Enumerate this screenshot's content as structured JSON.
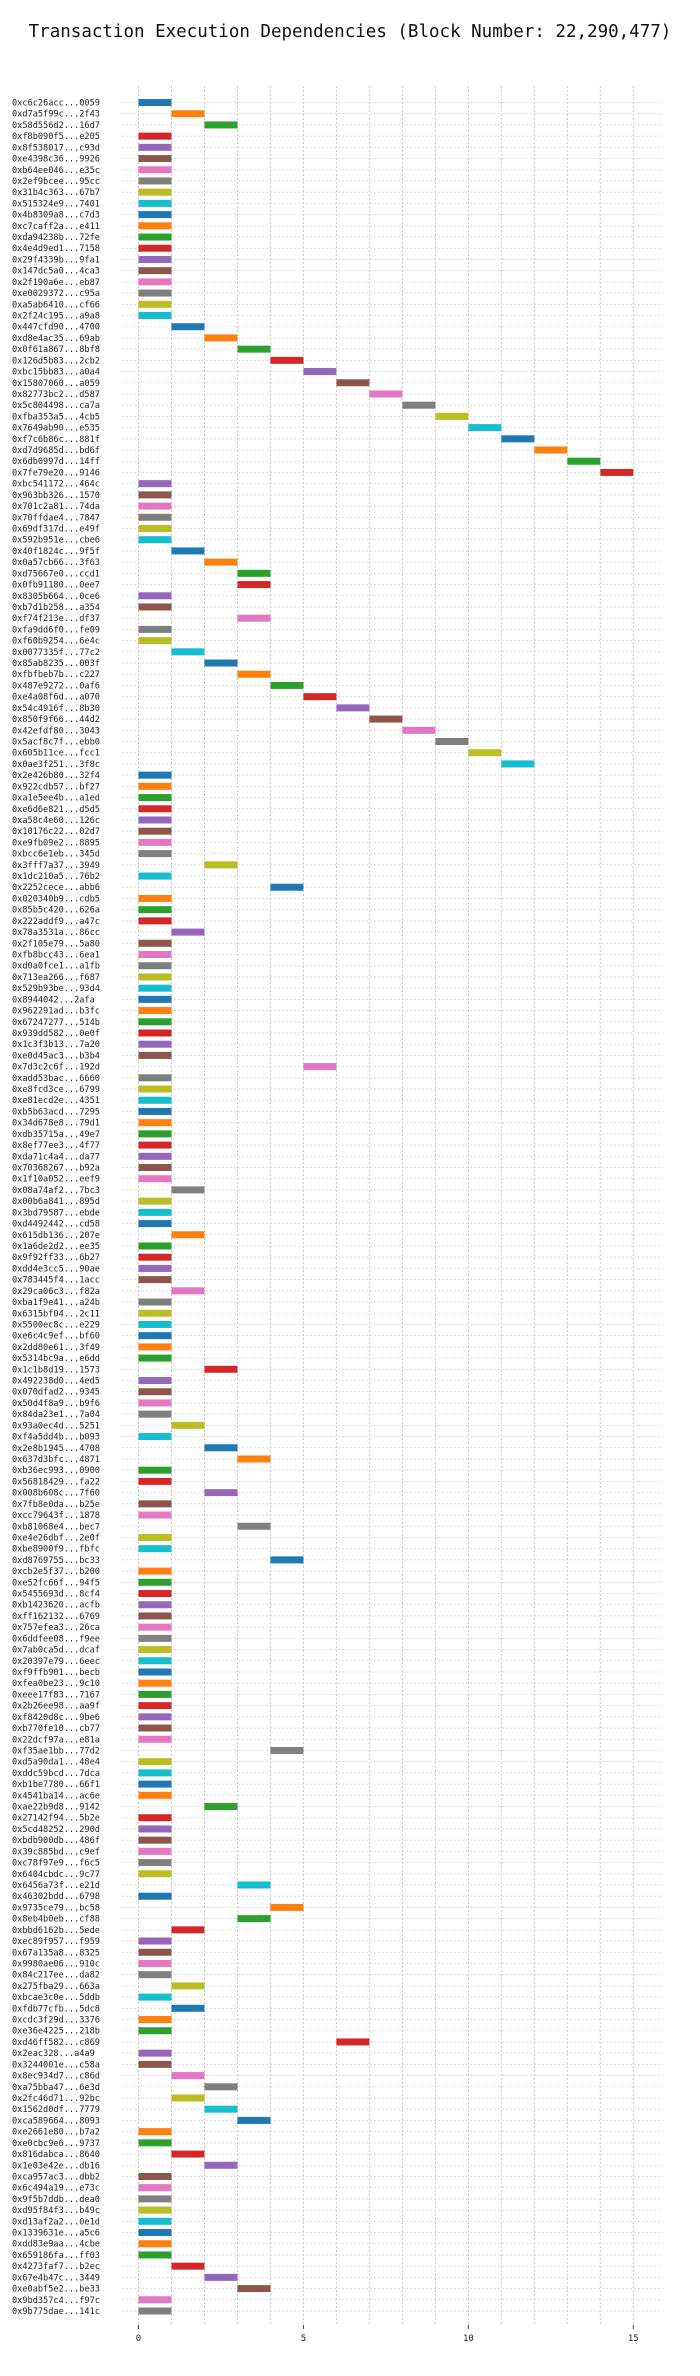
{
  "chart_data": {
    "type": "bar",
    "orientation": "horizontal-gantt",
    "title": "Transaction Execution Dependencies (Block Number: 22,290,477)",
    "xlabel": "",
    "ylabel": "",
    "xlim": [
      -0.5,
      15.9
    ],
    "xticks": [
      0,
      5,
      10,
      15
    ],
    "grid": true,
    "legend": "none",
    "palette": [
      "#1f77b4",
      "#ff7f0e",
      "#2ca02c",
      "#d62728",
      "#9467bd",
      "#8c564b",
      "#e377c2",
      "#7f7f7f",
      "#bcbd22",
      "#17becf"
    ],
    "bar_width": 1,
    "transactions": [
      {
        "label": "0xc6c26acc...0059",
        "start": 0
      },
      {
        "label": "0xd7a5f99c...2f43",
        "start": 1
      },
      {
        "label": "0x58d556d2...16d7",
        "start": 2
      },
      {
        "label": "0xf8b090f5...e205",
        "start": 0
      },
      {
        "label": "0x8f538017...c93d",
        "start": 0
      },
      {
        "label": "0xe4398c36...9926",
        "start": 0
      },
      {
        "label": "0xb64ee046...e35c",
        "start": 0
      },
      {
        "label": "0x2ef9bcee...95cc",
        "start": 0
      },
      {
        "label": "0x31b4c363...67b7",
        "start": 0
      },
      {
        "label": "0x515324e9...7401",
        "start": 0
      },
      {
        "label": "0x4b8309a8...c7d3",
        "start": 0
      },
      {
        "label": "0xc7caff2a...e411",
        "start": 0
      },
      {
        "label": "0xda94238b...72fe",
        "start": 0
      },
      {
        "label": "0x4e4d9ed1...7158",
        "start": 0
      },
      {
        "label": "0x29f4339b...9fa1",
        "start": 0
      },
      {
        "label": "0x147dc5a0...4ca3",
        "start": 0
      },
      {
        "label": "0x2f190a6e...eb87",
        "start": 0
      },
      {
        "label": "0xe0029372...c95a",
        "start": 0
      },
      {
        "label": "0xa5ab6410...cf66",
        "start": 0
      },
      {
        "label": "0x2f24c195...a9a8",
        "start": 0
      },
      {
        "label": "0x447cfd90...4700",
        "start": 1
      },
      {
        "label": "0xd8e4ac35...69ab",
        "start": 2
      },
      {
        "label": "0x0f61a867...8bf8",
        "start": 3
      },
      {
        "label": "0x126d5b83...2cb2",
        "start": 4
      },
      {
        "label": "0xbc15bb83...a0a4",
        "start": 5
      },
      {
        "label": "0x15807060...a059",
        "start": 6
      },
      {
        "label": "0x82773bc2...d587",
        "start": 7
      },
      {
        "label": "0x5c804498...ca7a",
        "start": 8
      },
      {
        "label": "0xfba353a5...4cb5",
        "start": 9
      },
      {
        "label": "0x7649ab90...e535",
        "start": 10
      },
      {
        "label": "0xf7c6b86c...881f",
        "start": 11
      },
      {
        "label": "0xd7d9685d...bd6f",
        "start": 12
      },
      {
        "label": "0x6db0997d...14ff",
        "start": 13
      },
      {
        "label": "0x7fe79e20...9146",
        "start": 14
      },
      {
        "label": "0xbc541172...464c",
        "start": 0
      },
      {
        "label": "0x963bb326...1570",
        "start": 0
      },
      {
        "label": "0x701c2a81...74da",
        "start": 0
      },
      {
        "label": "0x70ffdae4...7847",
        "start": 0
      },
      {
        "label": "0x69df317d...e49f",
        "start": 0
      },
      {
        "label": "0x592b951e...cbe6",
        "start": 0
      },
      {
        "label": "0x40f1824c...9f5f",
        "start": 1
      },
      {
        "label": "0x0a57cb66...3f63",
        "start": 2
      },
      {
        "label": "0xd75667e0...ccd1",
        "start": 3
      },
      {
        "label": "0x0fb91180...0ee7",
        "start": 3
      },
      {
        "label": "0x8305b664...0ce6",
        "start": 0
      },
      {
        "label": "0xb7d1b258...a354",
        "start": 0
      },
      {
        "label": "0xf74f213e...df37",
        "start": 3
      },
      {
        "label": "0xfa9dd6f0...fe09",
        "start": 0
      },
      {
        "label": "0xf60b9254...6e4c",
        "start": 0
      },
      {
        "label": "0x0077335f...77c2",
        "start": 1
      },
      {
        "label": "0x85ab8235...003f",
        "start": 2
      },
      {
        "label": "0xfbfbeb7b...c227",
        "start": 3
      },
      {
        "label": "0x487e9272...0af6",
        "start": 4
      },
      {
        "label": "0xe4a08f6d...a070",
        "start": 5
      },
      {
        "label": "0x54c4916f...8b30",
        "start": 6
      },
      {
        "label": "0x850f9f66...44d2",
        "start": 7
      },
      {
        "label": "0x42efdf80...3043",
        "start": 8
      },
      {
        "label": "0x5acf8c7f...ebb0",
        "start": 9
      },
      {
        "label": "0x605b11ce...fcc1",
        "start": 10
      },
      {
        "label": "0x0ae3f251...3f8c",
        "start": 11
      },
      {
        "label": "0x2e426b80...32f4",
        "start": 0
      },
      {
        "label": "0x922cdb57...bf27",
        "start": 0
      },
      {
        "label": "0xa1e5ee4b...a1ed",
        "start": 0
      },
      {
        "label": "0xe6d6e821...d5d5",
        "start": 0
      },
      {
        "label": "0xa58c4e60...126c",
        "start": 0
      },
      {
        "label": "0x10176c22...02d7",
        "start": 0
      },
      {
        "label": "0xe9fb09e2...8895",
        "start": 0
      },
      {
        "label": "0xbcc6e1eb...345d",
        "start": 0
      },
      {
        "label": "0x3fff7a37...3949",
        "start": 2
      },
      {
        "label": "0x1dc210a5...76b2",
        "start": 0
      },
      {
        "label": "0x2252cece...abb6",
        "start": 4
      },
      {
        "label": "0x020340b9...cdb5",
        "start": 0
      },
      {
        "label": "0x85b5c420...626a",
        "start": 0
      },
      {
        "label": "0x222addf9...a47c",
        "start": 0
      },
      {
        "label": "0x78a3531a...86cc",
        "start": 1
      },
      {
        "label": "0x2f105e79...5a80",
        "start": 0
      },
      {
        "label": "0xfb8bcc43...6ea1",
        "start": 0
      },
      {
        "label": "0xd0a0fce1...a1fb",
        "start": 0
      },
      {
        "label": "0x713ea266...f687",
        "start": 0
      },
      {
        "label": "0x529b93be...93d4",
        "start": 0
      },
      {
        "label": "0x8944042...2afa",
        "start": 0
      },
      {
        "label": "0x962291ad...b3fc",
        "start": 0
      },
      {
        "label": "0x67247277...514b",
        "start": 0
      },
      {
        "label": "0x939dd582...0e0f",
        "start": 0
      },
      {
        "label": "0x1c3f3b13...7a20",
        "start": 0
      },
      {
        "label": "0xe0d45ac3...b3b4",
        "start": 0
      },
      {
        "label": "0x7d3c2c6f...192d",
        "start": 5
      },
      {
        "label": "0xadd53bac...6660",
        "start": 0
      },
      {
        "label": "0xe8fcd3ce...6799",
        "start": 0
      },
      {
        "label": "0xe81ecd2e...4351",
        "start": 0
      },
      {
        "label": "0xb5b63acd...7295",
        "start": 0
      },
      {
        "label": "0x34d678e8...79d1",
        "start": 0
      },
      {
        "label": "0xdb35715a...49e7",
        "start": 0
      },
      {
        "label": "0x8ef77ee3...4f77",
        "start": 0
      },
      {
        "label": "0xda71c4a4...da77",
        "start": 0
      },
      {
        "label": "0x70368267...b92a",
        "start": 0
      },
      {
        "label": "0x1f10a052...eef9",
        "start": 0
      },
      {
        "label": "0x08a74af2...7bc3",
        "start": 1
      },
      {
        "label": "0x00b6a841...895d",
        "start": 0
      },
      {
        "label": "0x3bd79587...ebde",
        "start": 0
      },
      {
        "label": "0xd4492442...cd58",
        "start": 0
      },
      {
        "label": "0x615db136...207e",
        "start": 1
      },
      {
        "label": "0x1a6de2d2...ee35",
        "start": 0
      },
      {
        "label": "0x9f92ff33...6b27",
        "start": 0
      },
      {
        "label": "0xdd4e3cc5...90ae",
        "start": 0
      },
      {
        "label": "0x783445f4...1acc",
        "start": 0
      },
      {
        "label": "0x29ca06c3...f82a",
        "start": 1
      },
      {
        "label": "0xba1f9e41...a24b",
        "start": 0
      },
      {
        "label": "0x6315bf04...2c11",
        "start": 0
      },
      {
        "label": "0x5500ec8c...e229",
        "start": 0
      },
      {
        "label": "0xe6c4c9ef...bf60",
        "start": 0
      },
      {
        "label": "0x2dd80e61...3f49",
        "start": 0
      },
      {
        "label": "0x5314bc9a...e6dd",
        "start": 0
      },
      {
        "label": "0x1c1b8d19...1573",
        "start": 2
      },
      {
        "label": "0x492238d0...4ed5",
        "start": 0
      },
      {
        "label": "0x070dfad2...9345",
        "start": 0
      },
      {
        "label": "0x50d4f8a9...b9f6",
        "start": 0
      },
      {
        "label": "0x84da23e1...7a04",
        "start": 0
      },
      {
        "label": "0x93a0ec4d...5251",
        "start": 1
      },
      {
        "label": "0xf4a5dd4b...b093",
        "start": 0
      },
      {
        "label": "0x2e8b1945...4708",
        "start": 2
      },
      {
        "label": "0x637d3bfc...4871",
        "start": 3
      },
      {
        "label": "0xb36ec993...0900",
        "start": 0
      },
      {
        "label": "0x56818429...fa22",
        "start": 0
      },
      {
        "label": "0x008b608c...7f60",
        "start": 2
      },
      {
        "label": "0x7fb8e0da...b25e",
        "start": 0
      },
      {
        "label": "0xcc79643f...1878",
        "start": 0
      },
      {
        "label": "0xb81068e4...bec7",
        "start": 3
      },
      {
        "label": "0xe4e26dbf...2e0f",
        "start": 0
      },
      {
        "label": "0xbe8900f9...fbfc",
        "start": 0
      },
      {
        "label": "0xd8769755...bc33",
        "start": 4
      },
      {
        "label": "0xcb2e5f37...b200",
        "start": 0
      },
      {
        "label": "0xe52fc66f...94f5",
        "start": 0
      },
      {
        "label": "0x5455693d...8cf4",
        "start": 0
      },
      {
        "label": "0xb1423620...acfb",
        "start": 0
      },
      {
        "label": "0xff162132...6769",
        "start": 0
      },
      {
        "label": "0x757efea3...26ca",
        "start": 0
      },
      {
        "label": "0x6ddfee08...f9ee",
        "start": 0
      },
      {
        "label": "0x7ab0ca5d...dcaf",
        "start": 0
      },
      {
        "label": "0x20397e79...6eec",
        "start": 0
      },
      {
        "label": "0xf9ffb901...becb",
        "start": 0
      },
      {
        "label": "0xfea0be23...9c10",
        "start": 0
      },
      {
        "label": "0xeee17f83...7167",
        "start": 0
      },
      {
        "label": "0x2b26ee98...aa9f",
        "start": 0
      },
      {
        "label": "0xf8420d8c...9be6",
        "start": 0
      },
      {
        "label": "0xb770fe10...cb77",
        "start": 0
      },
      {
        "label": "0x22dcf97a...e81a",
        "start": 0
      },
      {
        "label": "0xf35ae1bb...77d2",
        "start": 4
      },
      {
        "label": "0xd5a90da1...48e4",
        "start": 0
      },
      {
        "label": "0xddc59bcd...7dca",
        "start": 0
      },
      {
        "label": "0xb1be7780...66f1",
        "start": 0
      },
      {
        "label": "0x4541ba14...ac6e",
        "start": 0
      },
      {
        "label": "0xae22b9d8...9142",
        "start": 2
      },
      {
        "label": "0x27142f94...5b2e",
        "start": 0
      },
      {
        "label": "0x5cd48252...290d",
        "start": 0
      },
      {
        "label": "0xbdb900db...486f",
        "start": 0
      },
      {
        "label": "0x39c885bd...c9ef",
        "start": 0
      },
      {
        "label": "0xc78f97e9...f6c5",
        "start": 0
      },
      {
        "label": "0x6404cbdc...9c77",
        "start": 0
      },
      {
        "label": "0x6456a73f...e21d",
        "start": 3
      },
      {
        "label": "0x46302bdd...6798",
        "start": 0
      },
      {
        "label": "0x9735ce79...bc58",
        "start": 4
      },
      {
        "label": "0x8eb4b0eb...cf88",
        "start": 3
      },
      {
        "label": "0xbbd6162b...5ede",
        "start": 1
      },
      {
        "label": "0xec89f957...f959",
        "start": 0
      },
      {
        "label": "0x67a135a8...8325",
        "start": 0
      },
      {
        "label": "0x9980ae06...910c",
        "start": 0
      },
      {
        "label": "0x84c217ee...da82",
        "start": 0
      },
      {
        "label": "0x275fba29...663a",
        "start": 1
      },
      {
        "label": "0xbcae3c0e...5ddb",
        "start": 0
      },
      {
        "label": "0xfdb77cfb...5dc8",
        "start": 1
      },
      {
        "label": "0xcdc3f29d...3376",
        "start": 0
      },
      {
        "label": "0xe36e4225...218b",
        "start": 0
      },
      {
        "label": "0xd46ff582...c869",
        "start": 6
      },
      {
        "label": "0x2eac328...a4a9",
        "start": 0
      },
      {
        "label": "0x3244001e...c58a",
        "start": 0
      },
      {
        "label": "0x8ec934d7...c86d",
        "start": 1
      },
      {
        "label": "0xa75bba47...6e3d",
        "start": 2
      },
      {
        "label": "0x2fc46d71...92bc",
        "start": 1
      },
      {
        "label": "0x1562d0df...7779",
        "start": 2
      },
      {
        "label": "0xca589664...8093",
        "start": 3
      },
      {
        "label": "0xe2661e80...b7a2",
        "start": 0
      },
      {
        "label": "0xe0cbc9e6...9737",
        "start": 0
      },
      {
        "label": "0x816dabca...8640",
        "start": 1
      },
      {
        "label": "0x1e03e42e...db16",
        "start": 2
      },
      {
        "label": "0xca957ac3...dbb2",
        "start": 0
      },
      {
        "label": "0x6c494a19...e73c",
        "start": 0
      },
      {
        "label": "0x9f5b7ddb...dea0",
        "start": 0
      },
      {
        "label": "0xd95f84f3...b49c",
        "start": 0
      },
      {
        "label": "0xd13af2a2...0e1d",
        "start": 0
      },
      {
        "label": "0x1339631e...a5c6",
        "start": 0
      },
      {
        "label": "0xdd83e9aa...4cbe",
        "start": 0
      },
      {
        "label": "0x659186fa...ff03",
        "start": 0
      },
      {
        "label": "0x4273faf7...b2ec",
        "start": 1
      },
      {
        "label": "0x67e4b47c...3449",
        "start": 2
      },
      {
        "label": "0xe0abf5e2...be33",
        "start": 3
      },
      {
        "label": "0x9bd357c4...f97c",
        "start": 0
      },
      {
        "label": "0x9b775dae...141c",
        "start": 0
      }
    ]
  }
}
